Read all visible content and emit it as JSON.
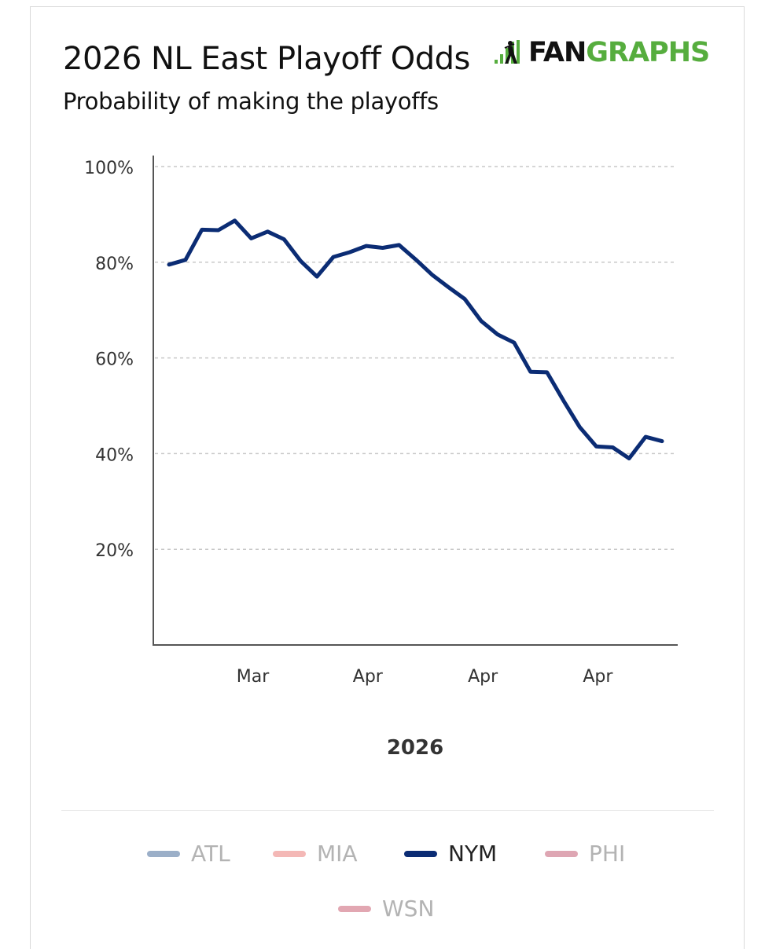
{
  "header": {
    "title": "2026 NL East Playoff Odds",
    "subtitle": "Probability of making the playoffs",
    "logo_fan": "FAN",
    "logo_graphs": "GRAPHS"
  },
  "chart_data": {
    "type": "line",
    "title": "2026 NL East Playoff Odds",
    "subtitle": "Probability of making the playoffs",
    "xlabel": "2026",
    "ylabel": "",
    "ylim": [
      0,
      100
    ],
    "yticks": [
      20,
      40,
      60,
      80,
      100
    ],
    "ytick_labels": [
      "20%",
      "40%",
      "60%",
      "80%",
      "100%"
    ],
    "xlim": [
      0,
      31.5
    ],
    "xticks": [
      5,
      12,
      19,
      26
    ],
    "xtick_labels": [
      "Mar",
      "Apr",
      "Apr",
      "Apr"
    ],
    "grid": true,
    "legend_position": "bottom",
    "series": [
      {
        "name": "NYM",
        "color": "#0b2c74",
        "x": [
          0,
          1,
          2,
          3,
          4,
          5,
          6,
          7,
          8,
          9,
          10,
          11,
          12,
          13,
          14,
          15,
          16,
          17,
          18,
          19,
          20,
          21,
          22,
          23,
          24,
          25,
          26,
          27,
          28,
          29,
          30
        ],
        "values": [
          79.5,
          80.5,
          86.8,
          86.7,
          88.7,
          85.0,
          86.4,
          84.8,
          80.3,
          77.0,
          81.1,
          82.1,
          83.4,
          83.0,
          83.6,
          80.6,
          77.4,
          74.8,
          72.3,
          67.7,
          64.9,
          63.2,
          57.1,
          57.0,
          51.1,
          45.5,
          41.5,
          41.3,
          39.0,
          43.5,
          42.6
        ]
      }
    ],
    "legend": [
      {
        "name": "ATL",
        "color": "#9bafc8",
        "active": false
      },
      {
        "name": "MIA",
        "color": "#f4b8b6",
        "active": false
      },
      {
        "name": "NYM",
        "color": "#0b2c74",
        "active": true
      },
      {
        "name": "PHI",
        "color": "#dea6b3",
        "active": false
      },
      {
        "name": "WSN",
        "color": "#e2a7b2",
        "active": false
      }
    ]
  }
}
